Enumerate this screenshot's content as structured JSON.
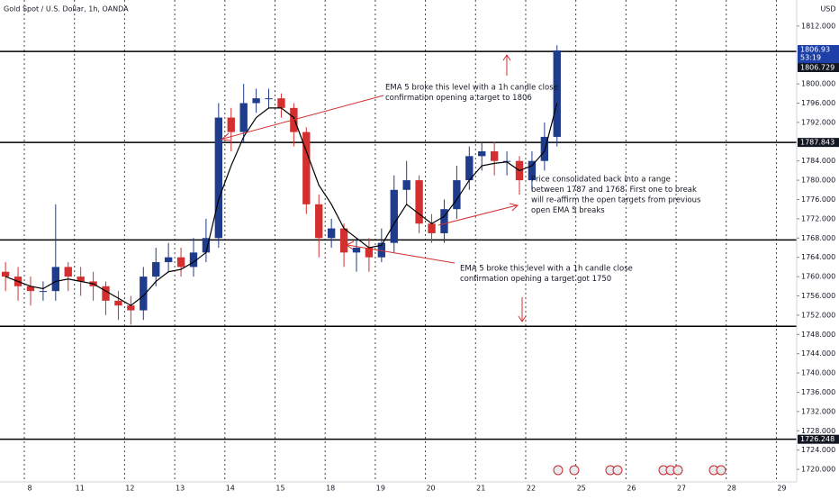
{
  "chart_data": {
    "type": "candlestick",
    "title": "Gold Spot / U.S. Dollar, 1h, OANDA",
    "currency": "USD",
    "x": [
      -0.375,
      -0.125,
      0.125,
      0.375,
      0.625,
      0.875,
      1.125,
      1.375,
      1.625,
      1.875,
      2.125,
      2.375,
      2.625,
      2.875,
      3.125,
      3.375,
      3.625,
      3.875,
      4.125,
      4.375,
      4.625,
      4.875,
      5.125,
      5.375,
      5.625,
      5.875,
      6.125,
      6.375,
      6.625,
      6.875,
      7.125,
      7.375,
      7.625,
      7.875,
      8.125,
      8.375,
      8.625,
      8.875,
      9.125,
      9.375,
      9.625,
      9.875,
      10.125,
      10.375,
      10.625
    ],
    "open": [
      1761,
      1760,
      1758,
      1757,
      1757,
      1762,
      1760,
      1759,
      1758,
      1755,
      1754,
      1753,
      1760,
      1763,
      1764,
      1762,
      1765,
      1768,
      1793,
      1790,
      1796,
      1797,
      1797,
      1795,
      1790,
      1775,
      1768,
      1770,
      1765,
      1766,
      1764,
      1767,
      1778,
      1780,
      1771,
      1769,
      1774,
      1780,
      1785,
      1786,
      1784,
      1784,
      1780,
      1784,
      1789
    ],
    "high": [
      1763,
      1762,
      1760,
      1759,
      1775,
      1763,
      1762,
      1761,
      1759,
      1757,
      1756,
      1762,
      1766,
      1767,
      1766,
      1768,
      1772,
      1796,
      1795,
      1800,
      1799,
      1799,
      1798,
      1796,
      1791,
      1777,
      1772,
      1771,
      1768,
      1768,
      1770,
      1781,
      1784,
      1781,
      1773,
      1776,
      1783,
      1787,
      1788,
      1788,
      1786,
      1785,
      1786,
      1792,
      1808
    ],
    "low": [
      1757,
      1755,
      1754,
      1755,
      1755,
      1757,
      1756,
      1755,
      1752,
      1751,
      1750,
      1751,
      1758,
      1761,
      1760,
      1760,
      1763,
      1766,
      1786,
      1788,
      1794,
      1795,
      1793,
      1787,
      1773,
      1764,
      1766,
      1762,
      1761,
      1761,
      1763,
      1765,
      1775,
      1769,
      1767,
      1767,
      1772,
      1778,
      1782,
      1781,
      1781,
      1777,
      1778,
      1782,
      1787
    ],
    "close": [
      1760,
      1758,
      1757,
      1757,
      1762,
      1760,
      1759,
      1758,
      1755,
      1754,
      1753,
      1760,
      1763,
      1764,
      1762,
      1765,
      1768,
      1793,
      1790,
      1796,
      1797,
      1797,
      1795,
      1790,
      1775,
      1768,
      1770,
      1765,
      1766,
      1764,
      1767,
      1778,
      1780,
      1771,
      1769,
      1774,
      1780,
      1785,
      1786,
      1784,
      1784,
      1780,
      1784,
      1789,
      1806.93
    ],
    "ema": [
      1760,
      1759,
      1758,
      1757.5,
      1759,
      1759.5,
      1759,
      1758.5,
      1757,
      1755.5,
      1754,
      1756,
      1759,
      1761,
      1761.5,
      1763,
      1765,
      1776,
      1783,
      1789,
      1793,
      1795,
      1795,
      1793,
      1786,
      1779,
      1775,
      1770,
      1768,
      1766,
      1766.5,
      1771,
      1775,
      1773,
      1771,
      1772.5,
      1776,
      1780,
      1783,
      1783.5,
      1783.8,
      1782,
      1783,
      1786,
      1796
    ],
    "up_color": "#1f3b8c",
    "down_color": "#d32f2f",
    "ema_color": "#000000",
    "last_price": 1806.93,
    "countdown": "53:19",
    "marked_levels": [
      1806.729,
      1787.843,
      1726.248
    ],
    "levels": [
      1767.6,
      1749.7
    ],
    "xlim": [
      -0.485,
      15.405
    ],
    "xticks": [
      {
        "value": 0,
        "label": "8"
      },
      {
        "value": 1,
        "label": "11"
      },
      {
        "value": 2,
        "label": "12"
      },
      {
        "value": 3,
        "label": "13"
      },
      {
        "value": 4,
        "label": "14"
      },
      {
        "value": 5,
        "label": "15"
      },
      {
        "value": 6,
        "label": "18"
      },
      {
        "value": 7,
        "label": "19"
      },
      {
        "value": 8,
        "label": "20"
      },
      {
        "value": 9,
        "label": "21"
      },
      {
        "value": 10,
        "label": "22"
      },
      {
        "value": 11,
        "label": "25"
      },
      {
        "value": 12,
        "label": "26"
      },
      {
        "value": 13,
        "label": "27"
      },
      {
        "value": 14,
        "label": "28"
      },
      {
        "value": 15,
        "label": "29"
      }
    ],
    "ylim": [
      1717.4,
      1817.4
    ],
    "yticks": [
      {
        "value": 1720,
        "label": "1720.000"
      },
      {
        "value": 1724,
        "label": "1724.000"
      },
      {
        "value": 1728,
        "label": "1728.000"
      },
      {
        "value": 1732,
        "label": "1732.000"
      },
      {
        "value": 1736,
        "label": "1736.000"
      },
      {
        "value": 1740,
        "label": "1740.000"
      },
      {
        "value": 1744,
        "label": "1744.000"
      },
      {
        "value": 1748,
        "label": "1748.000"
      },
      {
        "value": 1752,
        "label": "1752.000"
      },
      {
        "value": 1756,
        "label": "1756.000"
      },
      {
        "value": 1760,
        "label": "1760.000"
      },
      {
        "value": 1764,
        "label": "1764.000"
      },
      {
        "value": 1768,
        "label": "1768.000"
      },
      {
        "value": 1772,
        "label": "1772.000"
      },
      {
        "value": 1776,
        "label": "1776.000"
      },
      {
        "value": 1780,
        "label": "1780.000"
      },
      {
        "value": 1784,
        "label": "1784.000"
      },
      {
        "value": 1792,
        "label": "1792.000"
      },
      {
        "value": 1796,
        "label": "1796.000"
      },
      {
        "value": 1800,
        "label": "1800.000"
      },
      {
        "value": 1812,
        "label": "1812.000"
      }
    ],
    "grid": true,
    "annotations": [
      [
        "EMA 5 broke this level with a 1h candle close",
        "confirmation opening a target to 1806"
      ],
      [
        "Price consolidated back into a range",
        "between 1787 and 1768. First one to break",
        "will re-affirm the open targets from previous",
        "open EMA 5 breaks"
      ],
      [
        "EMA 5 broke this level with a 1h candle close",
        "confirmation opening a target got 1750"
      ]
    ]
  }
}
